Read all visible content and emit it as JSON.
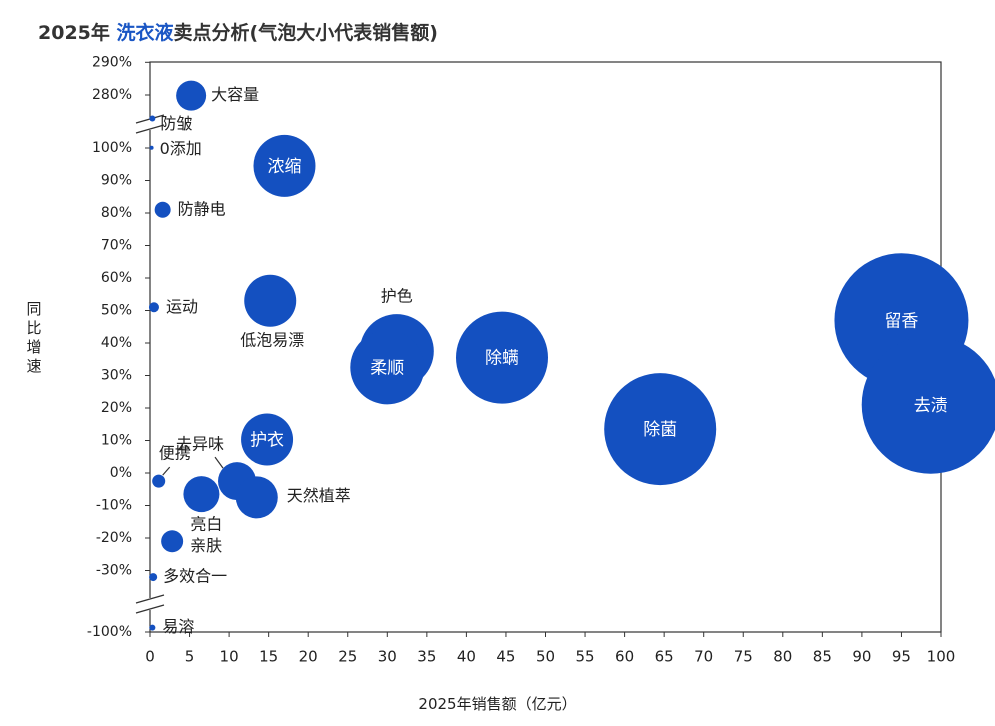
{
  "header": {
    "title_prefix": "2025年 ",
    "title_highlight": "洗衣液",
    "title_suffix": "卖点分析(气泡大小代表销售额)"
  },
  "colors": {
    "bubble": "#1450c0",
    "highlight": "#1a56c4",
    "axis": "#333333"
  },
  "chart_data": {
    "type": "scatter",
    "title": "2025年 洗衣液卖点分析(气泡大小代表销售额)",
    "xlabel": "2025年销售额（亿元）",
    "ylabel": "同比增速",
    "xlim": [
      0,
      100
    ],
    "x_ticks": [
      0,
      5,
      10,
      15,
      20,
      25,
      30,
      35,
      40,
      45,
      50,
      55,
      60,
      65,
      70,
      75,
      80,
      85,
      90,
      95,
      100
    ],
    "y_ticks_main": [
      -30,
      -20,
      -10,
      0,
      10,
      20,
      30,
      40,
      50,
      60,
      70,
      80,
      90,
      100
    ],
    "y_ticks_top": [
      280,
      290
    ],
    "y_ticks_bottom": [
      -100
    ],
    "y_tick_format": "{v}%",
    "y_axis_breaks": [
      "100% to 280%",
      "-30% to -100%"
    ],
    "bubble_size": "销售额",
    "points": [
      {
        "name": "大容量",
        "x": 5.2,
        "y": 278,
        "label_pos": "right"
      },
      {
        "name": "防皱",
        "x": 0.3,
        "y": 200,
        "label_pos": "right"
      },
      {
        "name": "0添加",
        "x": 0.2,
        "y": 101,
        "label_pos": "right"
      },
      {
        "name": "浓缩",
        "x": 17,
        "y": 94.5,
        "label_pos": "inside"
      },
      {
        "name": "防静电",
        "x": 1.6,
        "y": 81,
        "label_pos": "right"
      },
      {
        "name": "运动",
        "x": 0.5,
        "y": 51,
        "label_pos": "right"
      },
      {
        "name": "低泡易漂",
        "x": 15.2,
        "y": 53,
        "label_pos": "below"
      },
      {
        "name": "护色",
        "x": 31.2,
        "y": 37.5,
        "label_pos": "above"
      },
      {
        "name": "柔顺",
        "x": 30,
        "y": 32.5,
        "label_pos": "inside"
      },
      {
        "name": "除螨",
        "x": 44.5,
        "y": 35.5,
        "label_pos": "inside"
      },
      {
        "name": "留香",
        "x": 95,
        "y": 47,
        "label_pos": "inside"
      },
      {
        "name": "去渍",
        "x": 98.7,
        "y": 21,
        "label_pos": "inside"
      },
      {
        "name": "除菌",
        "x": 64.5,
        "y": 13.5,
        "label_pos": "inside"
      },
      {
        "name": "护衣",
        "x": 14.8,
        "y": 10.3,
        "label_pos": "inside"
      },
      {
        "name": "去异味",
        "x": 11,
        "y": -2.5,
        "label_pos": "leader"
      },
      {
        "name": "天然植萃",
        "x": 13.5,
        "y": -7.5,
        "label_pos": "right"
      },
      {
        "name": "便携",
        "x": 1.1,
        "y": -2.5,
        "label_pos": "leader"
      },
      {
        "name": "亮白",
        "x": 6.5,
        "y": -6.5,
        "label_pos": "below"
      },
      {
        "name": "亲肤",
        "x": 2.8,
        "y": -21,
        "label_pos": "right"
      },
      {
        "name": "多效合一",
        "x": 0.4,
        "y": -37,
        "label_pos": "right"
      },
      {
        "name": "易溶",
        "x": 0.3,
        "y": -95,
        "label_pos": "right"
      }
    ]
  }
}
